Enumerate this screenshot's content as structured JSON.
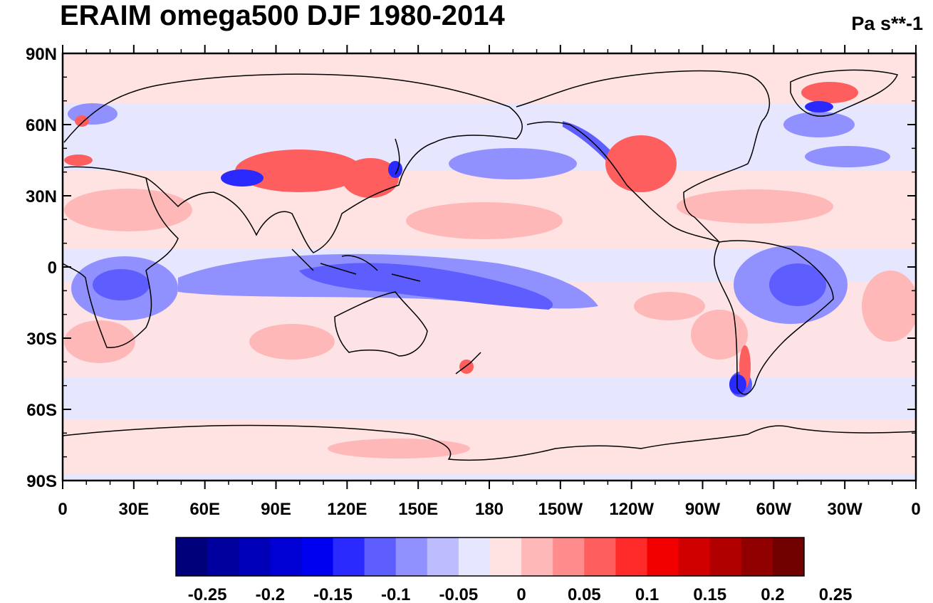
{
  "title": "ERAIM omega500 DJF 1980-2014",
  "units": "Pa s**-1",
  "map": {
    "projection": "cylindrical equidistant",
    "center_longitude": 180,
    "lon_range": [
      0,
      360
    ],
    "lat_range": [
      -90,
      90
    ],
    "lat_ticks": [
      {
        "lat": 90,
        "label": "90N"
      },
      {
        "lat": 60,
        "label": "60N"
      },
      {
        "lat": 30,
        "label": "30N"
      },
      {
        "lat": 0,
        "label": "0"
      },
      {
        "lat": -30,
        "label": "30S"
      },
      {
        "lat": -60,
        "label": "60S"
      },
      {
        "lat": -90,
        "label": "90S"
      }
    ],
    "lon_ticks": [
      {
        "lon": 0,
        "label": "0"
      },
      {
        "lon": 30,
        "label": "30E"
      },
      {
        "lon": 60,
        "label": "60E"
      },
      {
        "lon": 90,
        "label": "90E"
      },
      {
        "lon": 120,
        "label": "120E"
      },
      {
        "lon": 150,
        "label": "150E"
      },
      {
        "lon": 180,
        "label": "180"
      },
      {
        "lon": 210,
        "label": "150W"
      },
      {
        "lon": 240,
        "label": "120W"
      },
      {
        "lon": 270,
        "label": "90W"
      },
      {
        "lon": 300,
        "label": "60W"
      },
      {
        "lon": 330,
        "label": "30W"
      },
      {
        "lon": 360,
        "label": "0"
      }
    ],
    "background_value": "weak ascent (light blue)"
  },
  "colorbar": {
    "colors": [
      "#00007a",
      "#00009e",
      "#0000b8",
      "#0000d4",
      "#0000f0",
      "#2a2aff",
      "#5e5eff",
      "#9090ff",
      "#bcbcff",
      "#e6e6ff",
      "#ffe2e2",
      "#ffb8b8",
      "#ff8c8c",
      "#ff5e5e",
      "#ff2a2a",
      "#f20000",
      "#d00000",
      "#b00000",
      "#900000",
      "#700000"
    ],
    "labels": [
      "-0.25",
      "-0.2",
      "-0.15",
      "-0.1",
      "-0.05",
      "0",
      "0.05",
      "0.1",
      "0.15",
      "0.2",
      "0.25"
    ]
  }
}
